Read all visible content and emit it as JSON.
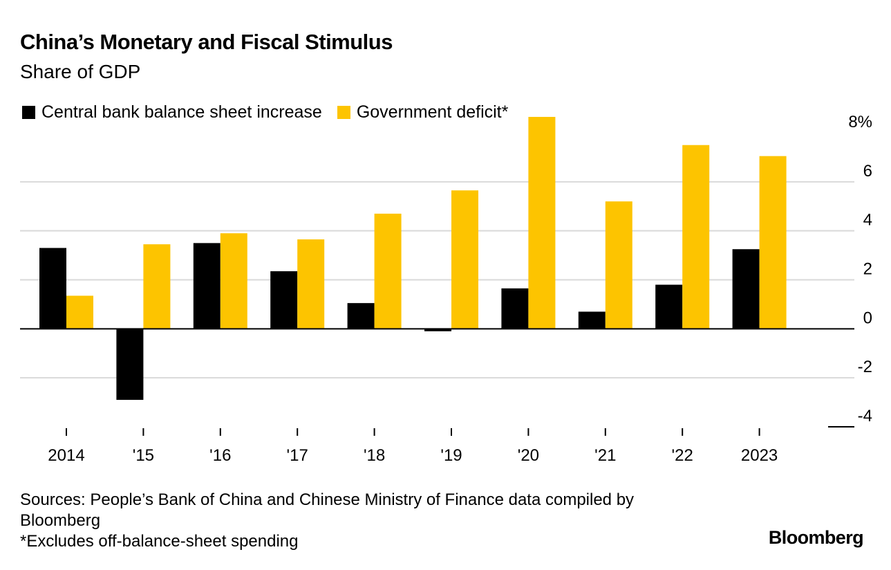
{
  "chart_data": {
    "type": "bar",
    "title": "China’s Monetary and Fiscal Stimulus",
    "subtitle": "Share of GDP",
    "categories": [
      "2014",
      "'15",
      "'16",
      "'17",
      "'18",
      "'19",
      "'20",
      "'21",
      "'22",
      "2023"
    ],
    "series": [
      {
        "name": "Central bank balance sheet increase",
        "color": "#000000",
        "values": [
          3.3,
          -2.9,
          3.5,
          2.35,
          1.05,
          -0.1,
          1.65,
          0.7,
          1.8,
          3.25
        ]
      },
      {
        "name": "Government deficit*",
        "color": "#fdc400",
        "values": [
          1.35,
          3.45,
          3.9,
          3.65,
          4.7,
          5.65,
          8.65,
          5.2,
          7.5,
          7.05
        ]
      }
    ],
    "yaxis": {
      "ticks": [
        -4,
        -2,
        0,
        2,
        4,
        6,
        8
      ],
      "tick_labels": [
        "-4",
        "-2",
        "0",
        "2",
        "4",
        "6",
        "8%"
      ],
      "ylim": [
        -4,
        8
      ],
      "position": "right"
    },
    "xlabel": "",
    "ylabel": "",
    "grid": true,
    "legend": "top-left"
  },
  "footer": {
    "source_line1": "Sources: People’s Bank of China and Chinese Ministry of Finance data compiled by",
    "source_line2": "Bloomberg",
    "note": "*Excludes off-balance-sheet spending"
  },
  "brand": "Bloomberg"
}
